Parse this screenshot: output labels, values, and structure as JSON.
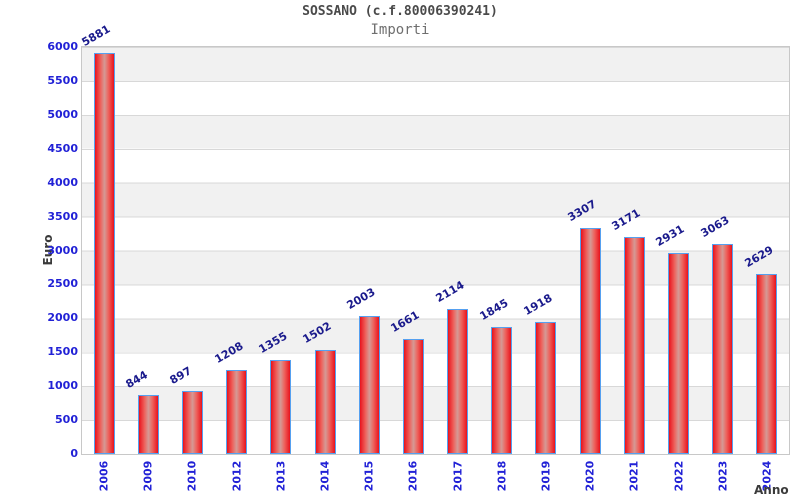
{
  "chart_data": {
    "type": "bar",
    "title": "SOSSANO (c.f.80006390241)",
    "subtitle": "Importi",
    "xlabel": "Anno",
    "ylabel": "Euro",
    "categories": [
      "2006",
      "2009",
      "2010",
      "2012",
      "2013",
      "2014",
      "2015",
      "2016",
      "2017",
      "2018",
      "2019",
      "2020",
      "2021",
      "2022",
      "2023",
      "2024"
    ],
    "values": [
      5881,
      844,
      897,
      1208,
      1355,
      1502,
      2003,
      1661,
      2114,
      1845,
      1918,
      3307,
      3171,
      2931,
      3063,
      2629
    ],
    "ylim": [
      0,
      6000
    ],
    "yticks": [
      0,
      500,
      1000,
      1500,
      2000,
      2500,
      3000,
      3500,
      4000,
      4500,
      5000,
      5500,
      6000
    ],
    "grid": true,
    "legend_position": "none",
    "colors": {
      "bar_edge": "#e8131d",
      "bar_mid": "#ee5f5a",
      "bar_center": "#d59a95",
      "bar_border": "#55a0f0",
      "axis_tick_label": "#2121d6",
      "value_label": "#1a1a8c",
      "title": "#4a4a4a",
      "subtitle": "#6f6f6f",
      "axis_title": "#3a3a3a",
      "band_gray": "#f1f1f1",
      "gridline": "#d8d8d8",
      "plot_border": "#c8c8c8"
    }
  }
}
